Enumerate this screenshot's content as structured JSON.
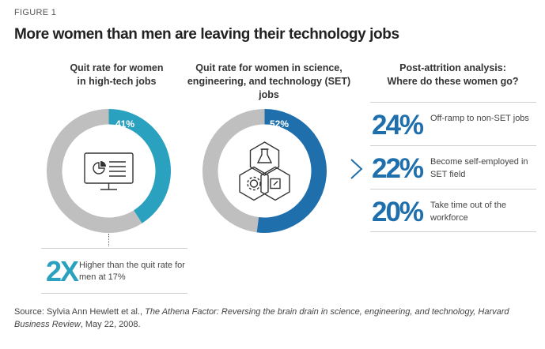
{
  "figure_label": "FIGURE 1",
  "title": "More women than men are leaving their technology jobs",
  "colors": {
    "teal": "#2aa1bf",
    "blue": "#1f6fad",
    "gray_ring": "#c0bfbf",
    "icon_stroke": "#333333"
  },
  "chart_data": [
    {
      "type": "pie",
      "title": "Quit rate for women in high-tech jobs",
      "title_lines": [
        "Quit rate for women",
        "in high-tech jobs"
      ],
      "values": [
        41,
        59
      ],
      "value_label": "41%",
      "highlight_color": "#2aa1bf",
      "icon": "computer-monitor-icon"
    },
    {
      "type": "pie",
      "title": "Quit rate for women in science, engineering, and technology (SET) jobs",
      "title_lines": [
        "Quit rate for women in science,",
        "engineering, and technology (SET) jobs"
      ],
      "values": [
        52,
        48
      ],
      "value_label": "52%",
      "highlight_color": "#1f6fad",
      "icon": "science-gears-icon"
    }
  ],
  "comparison": {
    "value": "2X",
    "text": "Higher than the quit rate for men at 17%"
  },
  "post_attrition": {
    "title_lines": [
      "Post-attrition analysis:",
      "Where do these women go?"
    ],
    "items": [
      {
        "value": "24%",
        "text": "Off-ramp to non-SET jobs"
      },
      {
        "value": "22%",
        "text": "Become self-employed in SET field"
      },
      {
        "value": "20%",
        "text": "Take time out of the workforce"
      }
    ]
  },
  "source": {
    "prefix": "Source: Sylvia Ann Hewlett et al., ",
    "italic": "The Athena Factor: Reversing the brain drain in science, engineering, and technology, Harvard Business Review",
    "suffix": ", May 22, 2008."
  }
}
